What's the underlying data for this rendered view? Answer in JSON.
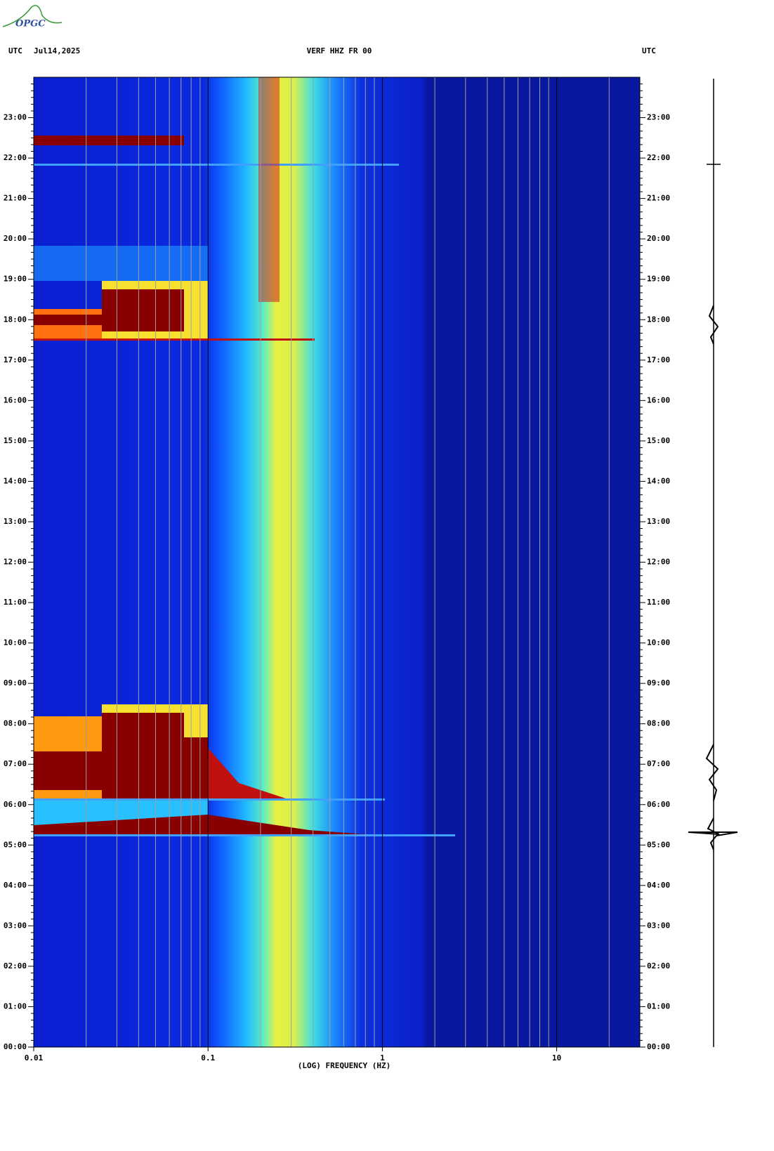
{
  "logo": "OPGC",
  "chart_data": {
    "type": "spectrogram",
    "title": "VERF HHZ FR 00",
    "time_zone": "UTC",
    "date": "Jul14,2025",
    "xlabel": "(LOG) FREQUENCY (HZ)",
    "log_x": true,
    "xlim": [
      0.01,
      30
    ],
    "xticks": [
      {
        "value": 0.01,
        "label": "0.01"
      },
      0.1,
      1,
      10
    ],
    "ylim": [
      0,
      24
    ],
    "yticks": [
      {
        "value": 0,
        "label": "00:00"
      },
      {
        "value": 1,
        "label": "01:00"
      },
      {
        "value": 2,
        "label": "02:00"
      },
      {
        "value": 3,
        "label": "03:00"
      },
      {
        "value": 4,
        "label": "04:00"
      },
      {
        "value": 5,
        "label": "05:00"
      },
      {
        "value": 6,
        "label": "06:00"
      },
      {
        "value": 7,
        "label": "07:00"
      },
      {
        "value": 8,
        "label": "08:00"
      },
      {
        "value": 9,
        "label": "09:00"
      },
      {
        "value": 10,
        "label": "10:00"
      },
      {
        "value": 11,
        "label": "11:00"
      },
      {
        "value": 12,
        "label": "12:00"
      },
      {
        "value": 13,
        "label": "13:00"
      },
      {
        "value": 14,
        "label": "14:00"
      },
      {
        "value": 15,
        "label": "15:00"
      },
      {
        "value": 16,
        "label": "16:00"
      },
      {
        "value": 17,
        "label": "17:00"
      },
      {
        "value": 18,
        "label": "18:00"
      },
      {
        "value": 19,
        "label": "19:00"
      },
      {
        "value": 20,
        "label": "20:00"
      },
      {
        "value": 21,
        "label": "21:00"
      },
      {
        "value": 22,
        "label": "22:00"
      },
      {
        "value": 23,
        "label": "23:00"
      }
    ]
  }
}
